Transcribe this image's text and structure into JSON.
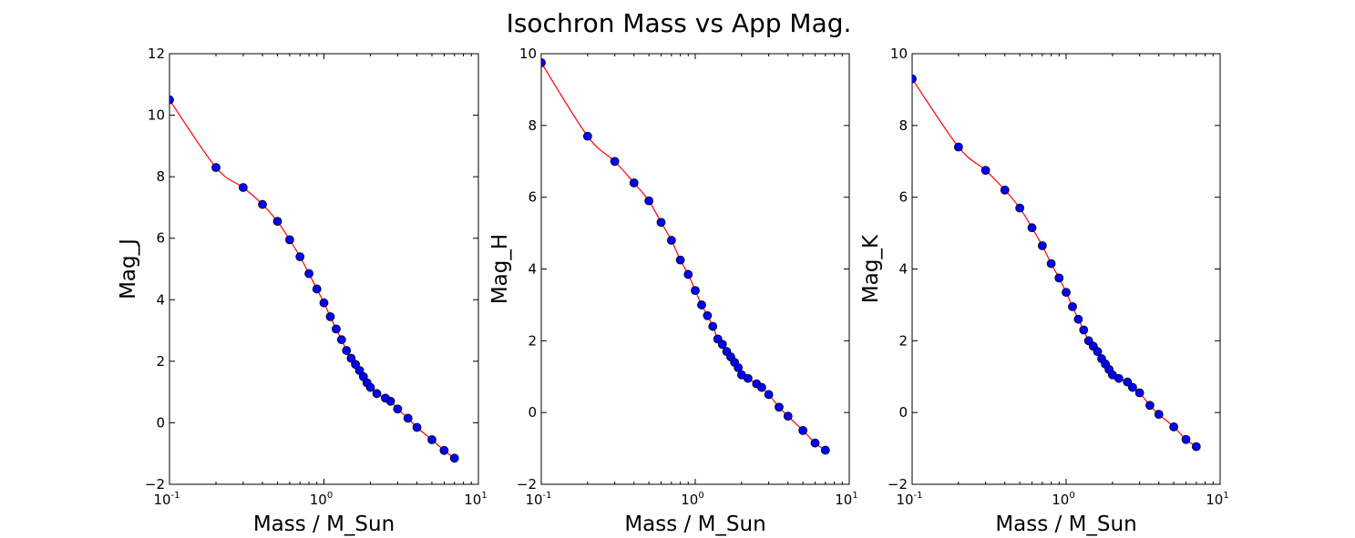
{
  "title": "Isochron Mass vs App Mag.",
  "colors": {
    "line": "#ff0000",
    "marker": "#0000ff",
    "marker_edge": "#000000",
    "frame": "#000000",
    "background": "#ffffff"
  },
  "chart_data": [
    {
      "type": "line",
      "xlabel": "Mass / M_Sun",
      "ylabel": "Mag_J",
      "xscale": "log",
      "xlim": [
        0.1,
        10
      ],
      "ylim": [
        -2,
        12
      ],
      "xticks": [
        {
          "base": "10",
          "exp": "-1",
          "value": 0.1
        },
        {
          "base": "10",
          "exp": "0",
          "value": 1
        },
        {
          "base": "10",
          "exp": "1",
          "value": 10
        }
      ],
      "yticks": [
        "12",
        "10",
        "8",
        "6",
        "4",
        "2",
        "0",
        "−2"
      ],
      "ytick_values": [
        12,
        10,
        8,
        6,
        4,
        2,
        0,
        -2
      ],
      "x": [
        0.1,
        0.2,
        0.3,
        0.4,
        0.5,
        0.6,
        0.7,
        0.8,
        0.9,
        1.0,
        1.1,
        1.2,
        1.3,
        1.4,
        1.5,
        1.6,
        1.7,
        1.8,
        1.9,
        2.0,
        2.2,
        2.5,
        2.7,
        3.0,
        3.5,
        4.0,
        5.0,
        6.0,
        7.0
      ],
      "y": [
        10.5,
        8.3,
        7.65,
        7.1,
        6.55,
        5.95,
        5.4,
        4.85,
        4.35,
        3.9,
        3.45,
        3.05,
        2.7,
        2.35,
        2.1,
        1.9,
        1.7,
        1.5,
        1.3,
        1.15,
        0.95,
        0.8,
        0.7,
        0.45,
        0.15,
        -0.15,
        -0.55,
        -0.9,
        -1.15
      ]
    },
    {
      "type": "line",
      "xlabel": "Mass / M_Sun",
      "ylabel": "Mag_H",
      "xscale": "log",
      "xlim": [
        0.1,
        10
      ],
      "ylim": [
        -2,
        10
      ],
      "xticks": [
        {
          "base": "10",
          "exp": "-1",
          "value": 0.1
        },
        {
          "base": "10",
          "exp": "0",
          "value": 1
        },
        {
          "base": "10",
          "exp": "1",
          "value": 10
        }
      ],
      "yticks": [
        "10",
        "8",
        "6",
        "4",
        "2",
        "0",
        "−2"
      ],
      "ytick_values": [
        10,
        8,
        6,
        4,
        2,
        0,
        -2
      ],
      "x": [
        0.1,
        0.2,
        0.3,
        0.4,
        0.5,
        0.6,
        0.7,
        0.8,
        0.9,
        1.0,
        1.1,
        1.2,
        1.3,
        1.4,
        1.5,
        1.6,
        1.7,
        1.8,
        1.9,
        2.0,
        2.2,
        2.5,
        2.7,
        3.0,
        3.5,
        4.0,
        5.0,
        6.0,
        7.0
      ],
      "y": [
        9.75,
        7.7,
        7.0,
        6.4,
        5.9,
        5.3,
        4.8,
        4.25,
        3.85,
        3.4,
        3.0,
        2.7,
        2.4,
        2.05,
        1.9,
        1.7,
        1.55,
        1.4,
        1.25,
        1.05,
        0.95,
        0.8,
        0.7,
        0.5,
        0.15,
        -0.1,
        -0.5,
        -0.85,
        -1.05
      ]
    },
    {
      "type": "line",
      "xlabel": "Mass / M_Sun",
      "ylabel": "Mag_K",
      "xscale": "log",
      "xlim": [
        0.1,
        10
      ],
      "ylim": [
        -2,
        10
      ],
      "xticks": [
        {
          "base": "10",
          "exp": "-1",
          "value": 0.1
        },
        {
          "base": "10",
          "exp": "0",
          "value": 1
        },
        {
          "base": "10",
          "exp": "1",
          "value": 10
        }
      ],
      "yticks": [
        "10",
        "8",
        "6",
        "4",
        "2",
        "0",
        "−2"
      ],
      "ytick_values": [
        10,
        8,
        6,
        4,
        2,
        0,
        -2
      ],
      "x": [
        0.1,
        0.2,
        0.3,
        0.4,
        0.5,
        0.6,
        0.7,
        0.8,
        0.9,
        1.0,
        1.1,
        1.2,
        1.3,
        1.4,
        1.5,
        1.6,
        1.7,
        1.8,
        1.9,
        2.0,
        2.2,
        2.5,
        2.7,
        3.0,
        3.5,
        4.0,
        5.0,
        6.0,
        7.0
      ],
      "y": [
        9.3,
        7.4,
        6.75,
        6.2,
        5.7,
        5.15,
        4.65,
        4.15,
        3.75,
        3.35,
        2.95,
        2.6,
        2.3,
        2.0,
        1.85,
        1.7,
        1.5,
        1.35,
        1.2,
        1.05,
        0.95,
        0.85,
        0.7,
        0.55,
        0.2,
        -0.05,
        -0.4,
        -0.75,
        -0.95
      ]
    }
  ]
}
